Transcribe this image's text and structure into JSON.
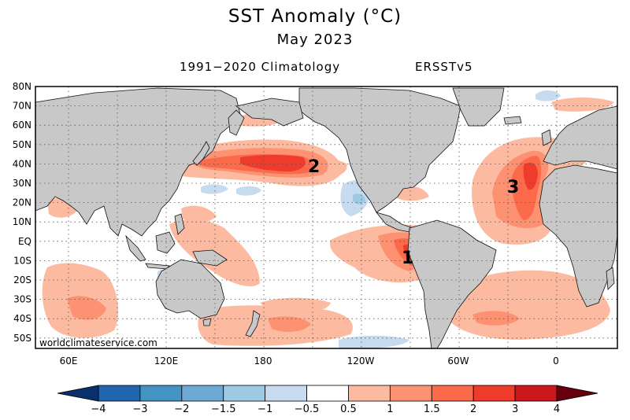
{
  "header": {
    "title": "SST Anomaly (°C)",
    "subtitle": "May 2023",
    "climatology": "1991−2020 Climatology",
    "dataset": "ERSSTv5"
  },
  "map": {
    "lat_labels": [
      "80N",
      "70N",
      "60N",
      "50N",
      "40N",
      "30N",
      "20N",
      "10N",
      "EQ",
      "10S",
      "20S",
      "30S",
      "40S",
      "50S"
    ],
    "lon_labels": [
      "60E",
      "120E",
      "180",
      "120W",
      "60W",
      "0"
    ],
    "watermark": "worldclimateservice.com",
    "callouts": [
      "1",
      "2",
      "3"
    ]
  },
  "legend": {
    "ticks": [
      "−4",
      "−3",
      "−2",
      "−1.5",
      "−1",
      "−0.5",
      "0.5",
      "1",
      "1.5",
      "2",
      "3",
      "4"
    ],
    "colors": [
      "#2166ac",
      "#4393c3",
      "#6ea9d6",
      "#9ecae1",
      "#c6dbef",
      "#ffffff",
      "#fcbba1",
      "#fc9272",
      "#fb6a4a",
      "#ef3b2c",
      "#cb181d"
    ],
    "arrow_left_color": "#08306b",
    "arrow_right_color": "#67000d"
  }
}
